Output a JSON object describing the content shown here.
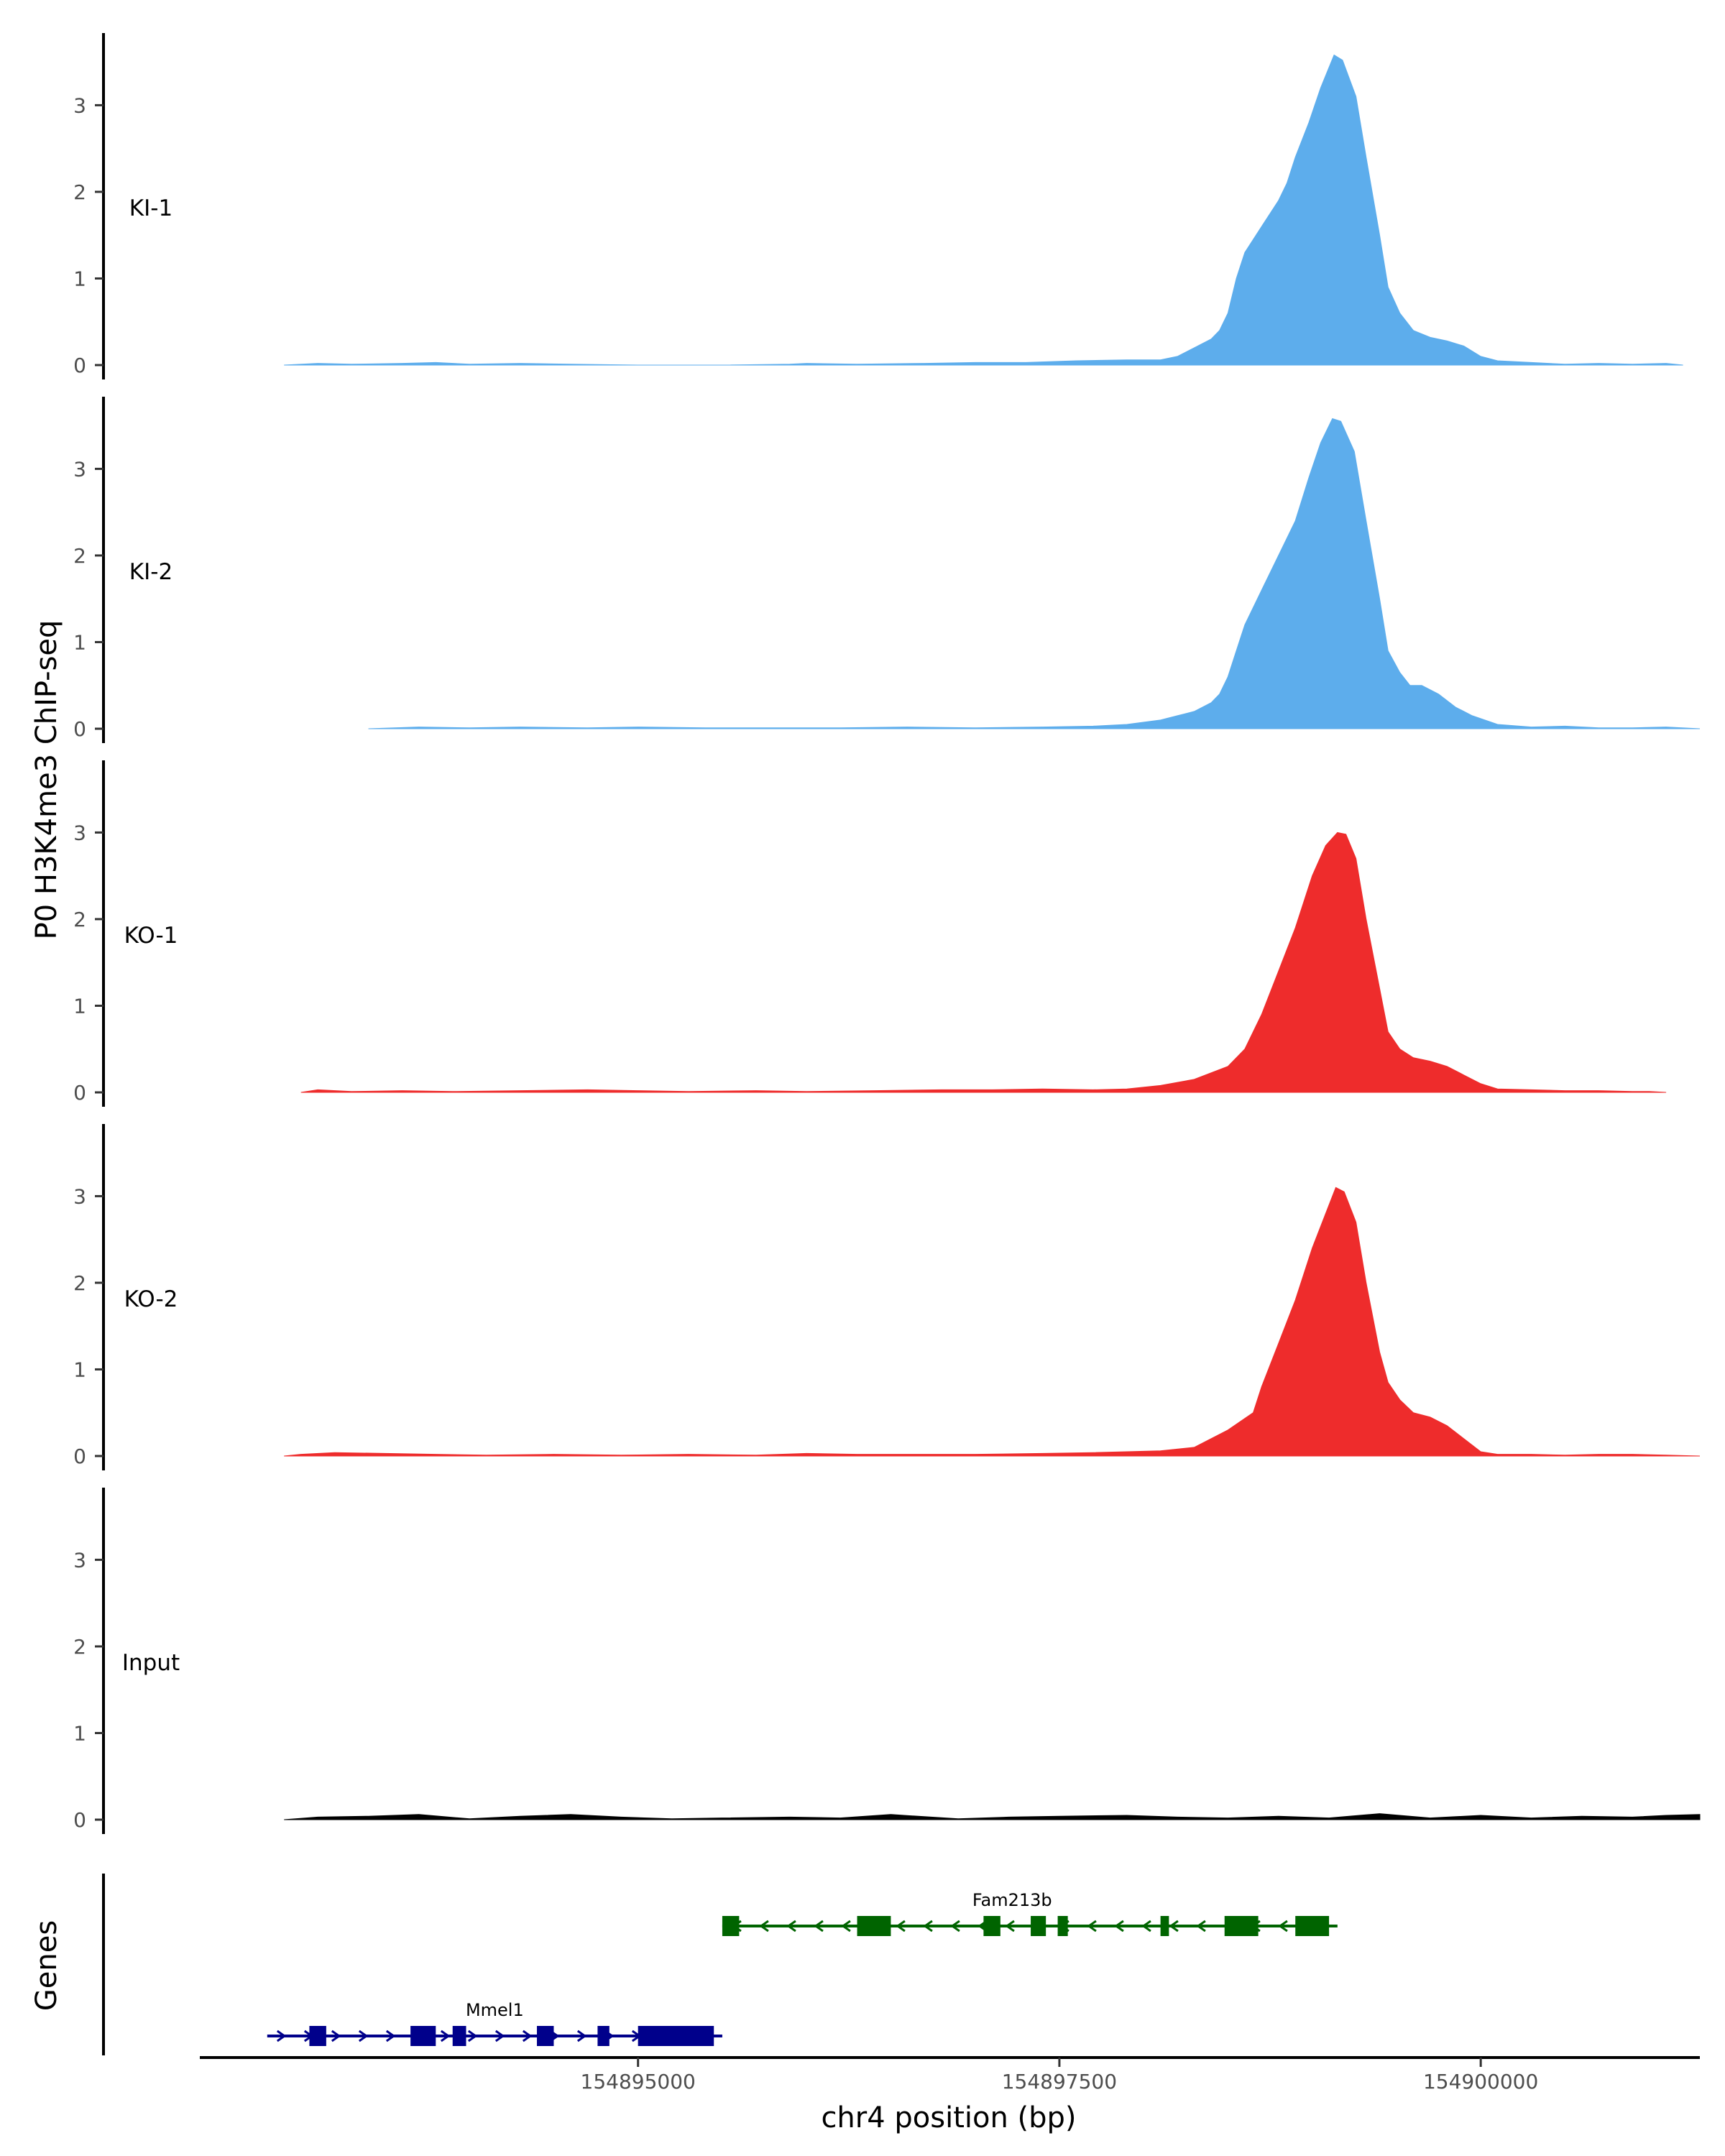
{
  "chart_data": {
    "type": "area",
    "xlabel": "chr4 position (bp)",
    "ylabel": "P0 H3K4me3 ChIP-seq",
    "genes_label": "Genes",
    "xlim": [
      154892400,
      154901300
    ],
    "ylim": [
      0,
      3.75
    ],
    "x_ticks": [
      154895000,
      154897500,
      154900000
    ],
    "x_tick_labels": [
      "154895000",
      "154897500",
      "154900000"
    ],
    "y_ticks": [
      0,
      1,
      2,
      3
    ],
    "y_tick_labels": [
      "0",
      "1",
      "2",
      "3"
    ],
    "tracks": [
      {
        "name": "KI-1",
        "color": "#5DADEC",
        "points": [
          [
            154892900,
            0
          ],
          [
            154893100,
            0.02
          ],
          [
            154893300,
            0.01
          ],
          [
            154893600,
            0.02
          ],
          [
            154893800,
            0.03
          ],
          [
            154894000,
            0.01
          ],
          [
            154894300,
            0.02
          ],
          [
            154894600,
            0.01
          ],
          [
            154895000,
            0
          ],
          [
            154895500,
            0
          ],
          [
            154895900,
            0.01
          ],
          [
            154896000,
            0.02
          ],
          [
            154896300,
            0.01
          ],
          [
            154896700,
            0.02
          ],
          [
            154897000,
            0.03
          ],
          [
            154897300,
            0.03
          ],
          [
            154897600,
            0.05
          ],
          [
            154897900,
            0.06
          ],
          [
            154898100,
            0.06
          ],
          [
            154898200,
            0.1
          ],
          [
            154898300,
            0.2
          ],
          [
            154898400,
            0.3
          ],
          [
            154898450,
            0.4
          ],
          [
            154898500,
            0.6
          ],
          [
            154898550,
            1.0
          ],
          [
            154898600,
            1.3
          ],
          [
            154898700,
            1.6
          ],
          [
            154898800,
            1.9
          ],
          [
            154898850,
            2.1
          ],
          [
            154898900,
            2.4
          ],
          [
            154898980,
            2.8
          ],
          [
            154899050,
            3.2
          ],
          [
            154899130,
            3.58
          ],
          [
            154899180,
            3.52
          ],
          [
            154899260,
            3.1
          ],
          [
            154899320,
            2.4
          ],
          [
            154899400,
            1.5
          ],
          [
            154899450,
            0.9
          ],
          [
            154899520,
            0.6
          ],
          [
            154899600,
            0.4
          ],
          [
            154899700,
            0.32
          ],
          [
            154899800,
            0.28
          ],
          [
            154899900,
            0.22
          ],
          [
            154900000,
            0.1
          ],
          [
            154900100,
            0.05
          ],
          [
            154900300,
            0.03
          ],
          [
            154900500,
            0.01
          ],
          [
            154900700,
            0.02
          ],
          [
            154900900,
            0.01
          ],
          [
            154901100,
            0.02
          ],
          [
            154901200,
            0
          ]
        ]
      },
      {
        "name": "KI-2",
        "color": "#5DADEC",
        "points": [
          [
            154893400,
            0
          ],
          [
            154893700,
            0.02
          ],
          [
            154894000,
            0.01
          ],
          [
            154894300,
            0.02
          ],
          [
            154894700,
            0.01
          ],
          [
            154895000,
            0.02
          ],
          [
            154895400,
            0.01
          ],
          [
            154895800,
            0.01
          ],
          [
            154896200,
            0.01
          ],
          [
            154896600,
            0.02
          ],
          [
            154897000,
            0.01
          ],
          [
            154897400,
            0.02
          ],
          [
            154897700,
            0.03
          ],
          [
            154897900,
            0.05
          ],
          [
            154898100,
            0.1
          ],
          [
            154898200,
            0.15
          ],
          [
            154898300,
            0.2
          ],
          [
            154898400,
            0.3
          ],
          [
            154898450,
            0.4
          ],
          [
            154898500,
            0.6
          ],
          [
            154898550,
            0.9
          ],
          [
            154898600,
            1.2
          ],
          [
            154898700,
            1.6
          ],
          [
            154898800,
            2.0
          ],
          [
            154898900,
            2.4
          ],
          [
            154898980,
            2.9
          ],
          [
            154899050,
            3.3
          ],
          [
            154899120,
            3.58
          ],
          [
            154899170,
            3.55
          ],
          [
            154899250,
            3.2
          ],
          [
            154899320,
            2.4
          ],
          [
            154899400,
            1.5
          ],
          [
            154899450,
            0.9
          ],
          [
            154899520,
            0.65
          ],
          [
            154899580,
            0.5
          ],
          [
            154899650,
            0.5
          ],
          [
            154899750,
            0.4
          ],
          [
            154899850,
            0.25
          ],
          [
            154899950,
            0.15
          ],
          [
            154900100,
            0.05
          ],
          [
            154900300,
            0.02
          ],
          [
            154900500,
            0.03
          ],
          [
            154900700,
            0.01
          ],
          [
            154900900,
            0.01
          ],
          [
            154901100,
            0.02
          ],
          [
            154901300,
            0
          ]
        ]
      },
      {
        "name": "KO-1",
        "color": "#EE2C2C",
        "points": [
          [
            154893000,
            0
          ],
          [
            154893100,
            0.03
          ],
          [
            154893300,
            0.01
          ],
          [
            154893600,
            0.02
          ],
          [
            154893900,
            0.01
          ],
          [
            154894300,
            0.02
          ],
          [
            154894700,
            0.03
          ],
          [
            154895000,
            0.02
          ],
          [
            154895300,
            0.01
          ],
          [
            154895700,
            0.02
          ],
          [
            154896000,
            0.01
          ],
          [
            154896400,
            0.02
          ],
          [
            154896800,
            0.03
          ],
          [
            154897100,
            0.03
          ],
          [
            154897400,
            0.04
          ],
          [
            154897700,
            0.03
          ],
          [
            154897900,
            0.04
          ],
          [
            154898100,
            0.08
          ],
          [
            154898300,
            0.15
          ],
          [
            154898500,
            0.3
          ],
          [
            154898600,
            0.5
          ],
          [
            154898700,
            0.9
          ],
          [
            154898800,
            1.4
          ],
          [
            154898900,
            1.9
          ],
          [
            154899000,
            2.5
          ],
          [
            154899080,
            2.85
          ],
          [
            154899150,
            3.0
          ],
          [
            154899200,
            2.98
          ],
          [
            154899260,
            2.7
          ],
          [
            154899320,
            2.0
          ],
          [
            154899400,
            1.2
          ],
          [
            154899450,
            0.7
          ],
          [
            154899520,
            0.5
          ],
          [
            154899600,
            0.4
          ],
          [
            154899700,
            0.36
          ],
          [
            154899800,
            0.3
          ],
          [
            154899900,
            0.2
          ],
          [
            154900000,
            0.1
          ],
          [
            154900100,
            0.04
          ],
          [
            154900300,
            0.03
          ],
          [
            154900500,
            0.02
          ],
          [
            154900700,
            0.02
          ],
          [
            154900900,
            0.01
          ],
          [
            154901000,
            0.01
          ],
          [
            154901100,
            0
          ]
        ]
      },
      {
        "name": "KO-2",
        "color": "#EE2C2C",
        "points": [
          [
            154892900,
            0
          ],
          [
            154893000,
            0.02
          ],
          [
            154893200,
            0.04
          ],
          [
            154893500,
            0.03
          ],
          [
            154893800,
            0.02
          ],
          [
            154894100,
            0.01
          ],
          [
            154894500,
            0.02
          ],
          [
            154894900,
            0.01
          ],
          [
            154895300,
            0.02
          ],
          [
            154895700,
            0.01
          ],
          [
            154896000,
            0.03
          ],
          [
            154896300,
            0.02
          ],
          [
            154896700,
            0.02
          ],
          [
            154897000,
            0.02
          ],
          [
            154897400,
            0.03
          ],
          [
            154897700,
            0.04
          ],
          [
            154897900,
            0.05
          ],
          [
            154898100,
            0.06
          ],
          [
            154898300,
            0.1
          ],
          [
            154898500,
            0.3
          ],
          [
            154898650,
            0.5
          ],
          [
            154898700,
            0.8
          ],
          [
            154898800,
            1.3
          ],
          [
            154898900,
            1.8
          ],
          [
            154899000,
            2.4
          ],
          [
            154899080,
            2.8
          ],
          [
            154899140,
            3.1
          ],
          [
            154899190,
            3.05
          ],
          [
            154899260,
            2.7
          ],
          [
            154899320,
            2.0
          ],
          [
            154899400,
            1.2
          ],
          [
            154899450,
            0.85
          ],
          [
            154899520,
            0.65
          ],
          [
            154899600,
            0.5
          ],
          [
            154899700,
            0.45
          ],
          [
            154899800,
            0.35
          ],
          [
            154899900,
            0.2
          ],
          [
            154900000,
            0.05
          ],
          [
            154900100,
            0.02
          ],
          [
            154900300,
            0.02
          ],
          [
            154900500,
            0.01
          ],
          [
            154900700,
            0.02
          ],
          [
            154900900,
            0.02
          ],
          [
            154901100,
            0.01
          ],
          [
            154901300,
            0
          ]
        ]
      },
      {
        "name": "Input",
        "color": "#000000",
        "points": [
          [
            154892900,
            0
          ],
          [
            154893100,
            0.03
          ],
          [
            154893400,
            0.04
          ],
          [
            154893700,
            0.06
          ],
          [
            154894000,
            0.01
          ],
          [
            154894300,
            0.04
          ],
          [
            154894600,
            0.06
          ],
          [
            154894900,
            0.03
          ],
          [
            154895200,
            0.01
          ],
          [
            154895500,
            0.02
          ],
          [
            154895900,
            0.03
          ],
          [
            154896200,
            0.02
          ],
          [
            154896500,
            0.06
          ],
          [
            154896900,
            0.01
          ],
          [
            154897200,
            0.03
          ],
          [
            154897500,
            0.04
          ],
          [
            154897900,
            0.05
          ],
          [
            154898200,
            0.03
          ],
          [
            154898500,
            0.02
          ],
          [
            154898800,
            0.04
          ],
          [
            154899100,
            0.02
          ],
          [
            154899400,
            0.07
          ],
          [
            154899700,
            0.02
          ],
          [
            154900000,
            0.05
          ],
          [
            154900300,
            0.02
          ],
          [
            154900600,
            0.04
          ],
          [
            154900900,
            0.03
          ],
          [
            154901100,
            0.05
          ],
          [
            154901300,
            0.06
          ]
        ]
      }
    ],
    "genes": [
      {
        "name": "Mmel1",
        "color": "#00008B",
        "strand": "+",
        "start": 154892800,
        "end": 154895500,
        "exons": [
          [
            154893050,
            154893150
          ],
          [
            154893650,
            154893800
          ],
          [
            154893900,
            154893980
          ],
          [
            154894400,
            154894500
          ],
          [
            154894760,
            154894830
          ],
          [
            154895000,
            154895450
          ]
        ]
      },
      {
        "name": "Fam213b",
        "color": "#006400",
        "strand": "-",
        "start": 154895500,
        "end": 154899150,
        "exons": [
          [
            154895500,
            154895600
          ],
          [
            154896300,
            154896500
          ],
          [
            154897050,
            154897150
          ],
          [
            154897330,
            154897420
          ],
          [
            154897490,
            154897550
          ],
          [
            154898100,
            154898150
          ],
          [
            154898480,
            154898680
          ],
          [
            154898900,
            154899100
          ]
        ]
      }
    ]
  }
}
